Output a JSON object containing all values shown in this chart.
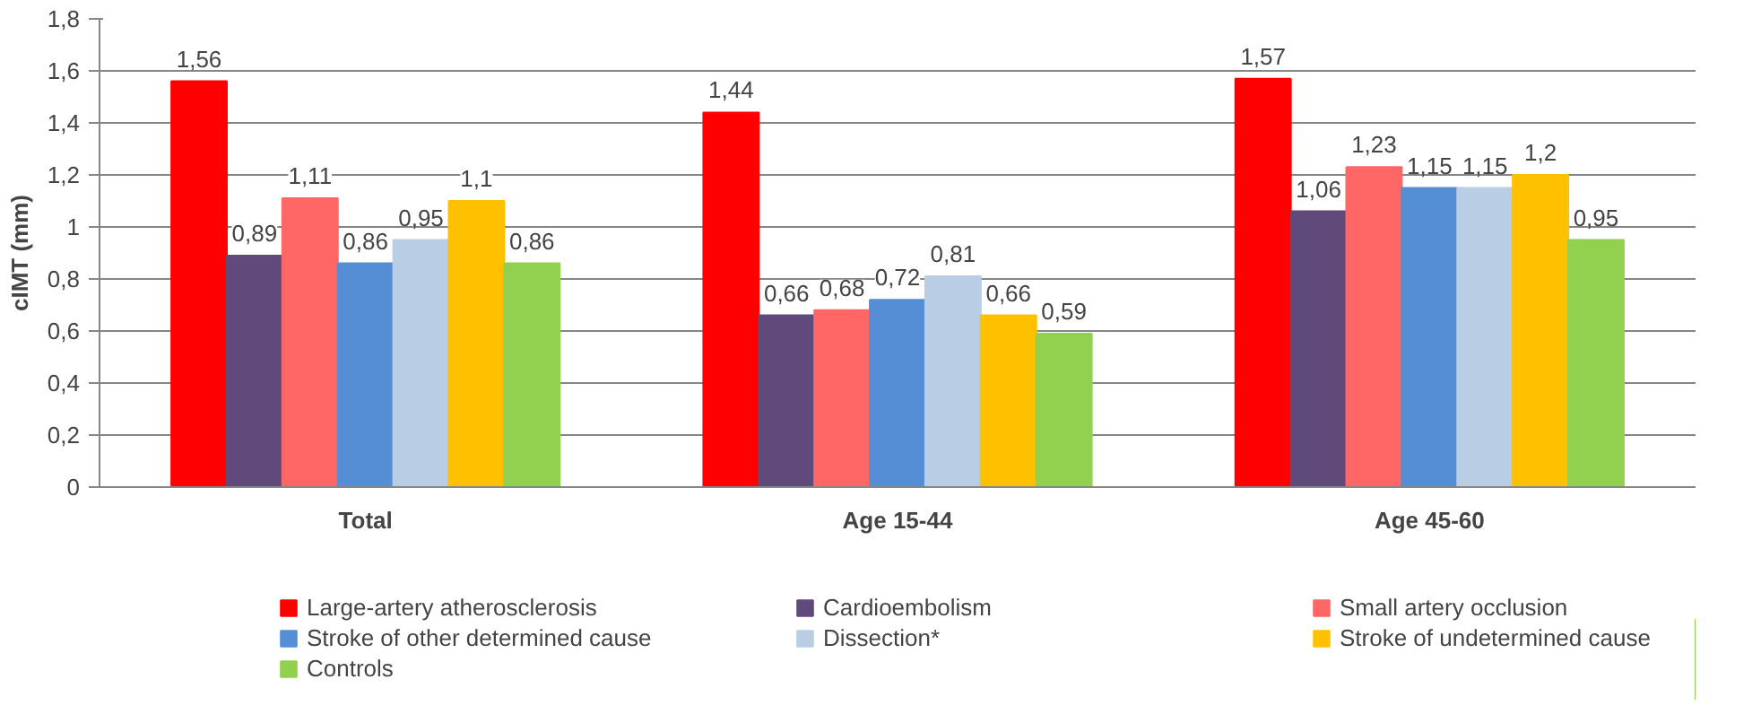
{
  "chart_data": {
    "type": "bar",
    "ylabel": "cIMT (mm)",
    "categories": [
      "Total",
      "Age 15-44",
      "Age 45-60"
    ],
    "series": [
      {
        "name": "Large-artery atherosclerosis",
        "color": "#ff0000",
        "values": [
          1.56,
          1.44,
          1.57
        ],
        "value_labels": [
          "1,56",
          "1,44",
          "1,57"
        ]
      },
      {
        "name": "Cardioembolism",
        "color": "#604a7b",
        "values": [
          0.89,
          0.66,
          1.06
        ],
        "value_labels": [
          "0,89",
          "0,66",
          "1,06"
        ]
      },
      {
        "name": "Small artery occlusion",
        "color": "#ff6666",
        "values": [
          1.11,
          0.68,
          1.23
        ],
        "value_labels": [
          "1,11",
          "0,68",
          "1,23"
        ]
      },
      {
        "name": "Stroke of other determined cause",
        "color": "#558ed5",
        "values": [
          0.86,
          0.72,
          1.15
        ],
        "value_labels": [
          "0,86",
          "0,72",
          "1,15"
        ]
      },
      {
        "name": "Dissection*",
        "color": "#b9cde5",
        "values": [
          0.95,
          0.81,
          1.15
        ],
        "value_labels": [
          "0,95",
          "0,81",
          "1,15"
        ]
      },
      {
        "name": "Stroke of undetermined cause",
        "color": "#ffc000",
        "values": [
          1.1,
          0.66,
          1.2
        ],
        "value_labels": [
          "1,1",
          "0,66",
          "1,2"
        ]
      },
      {
        "name": "Controls",
        "color": "#92d050",
        "values": [
          0.86,
          0.59,
          0.95
        ],
        "value_labels": [
          "0,86",
          "0,59",
          "0,95"
        ]
      }
    ],
    "ylim": [
      0,
      1.8
    ],
    "yticks": [
      0,
      {
        "value": 0.2,
        "label": "0,2"
      },
      {
        "value": 0.4,
        "label": "0,4"
      },
      {
        "value": 0.6,
        "label": "0,6"
      },
      {
        "value": 0.8,
        "label": "0,8"
      },
      1,
      {
        "value": 1.2,
        "label": "1,2"
      },
      {
        "value": 1.4,
        "label": "1,4"
      },
      {
        "value": 1.6,
        "label": "1,6"
      },
      {
        "value": 1.8,
        "label": "1,8"
      }
    ],
    "grid": "y",
    "legend": "bottom"
  }
}
